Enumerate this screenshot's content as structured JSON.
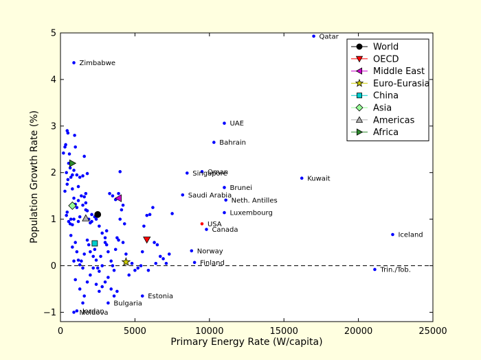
{
  "chart_data": {
    "type": "scatter",
    "title": "",
    "xlabel": "Primary Energy Rate (W/capita)",
    "ylabel": "Population Growth Rate (%)",
    "xlim": [
      0,
      25000
    ],
    "ylim": [
      -1.2,
      5
    ],
    "x_ticks": [
      0,
      5000,
      10000,
      15000,
      20000,
      25000
    ],
    "y_ticks": [
      -1,
      0,
      1,
      2,
      3,
      4,
      5
    ],
    "x_tick_labels": [
      "0",
      "5000",
      "10000",
      "15000",
      "20000",
      "25000"
    ],
    "y_tick_labels": [
      "−1",
      "0",
      "1",
      "2",
      "3",
      "4",
      "5"
    ],
    "grid": false,
    "reference_line": {
      "y": 0,
      "style": "dashed"
    },
    "legend_position": "top-right",
    "countries_color": "#0000ff",
    "labeled_countries": [
      {
        "label": "Qatar",
        "x": 17000,
        "y": 4.93
      },
      {
        "label": "Zimbabwe",
        "x": 900,
        "y": 4.36
      },
      {
        "label": "UAE",
        "x": 11000,
        "y": 3.06
      },
      {
        "label": "Bahrain",
        "x": 10300,
        "y": 2.65
      },
      {
        "label": "Oman",
        "x": 9500,
        "y": 2.02
      },
      {
        "label": "Singapore",
        "x": 8500,
        "y": 1.99
      },
      {
        "label": "Kuwait",
        "x": 16200,
        "y": 1.88
      },
      {
        "label": "Brunei",
        "x": 11000,
        "y": 1.68
      },
      {
        "label": "Saudi Arabia",
        "x": 8200,
        "y": 1.52
      },
      {
        "label": "Neth. Antilles",
        "x": 11100,
        "y": 1.41
      },
      {
        "label": "Luxembourg",
        "x": 11000,
        "y": 1.14
      },
      {
        "label": "USA",
        "x": 9500,
        "y": 0.9
      },
      {
        "label": "Canada",
        "x": 9800,
        "y": 0.78
      },
      {
        "label": "Iceland",
        "x": 22300,
        "y": 0.67
      },
      {
        "label": "Norway",
        "x": 8800,
        "y": 0.32
      },
      {
        "label": "Finland",
        "x": 9000,
        "y": 0.07
      },
      {
        "label": "Trin./Tob.",
        "x": 21100,
        "y": -0.08
      },
      {
        "label": "Estonia",
        "x": 5500,
        "y": -0.65
      },
      {
        "label": "Bulgaria",
        "x": 3200,
        "y": -0.8
      },
      {
        "label": "Jordan",
        "x": 1100,
        "y": -0.97
      },
      {
        "label": "Moldova",
        "x": 900,
        "y": -1.0
      }
    ],
    "other_countries": [
      [
        200,
        2.42
      ],
      [
        300,
        2.55
      ],
      [
        350,
        2.6
      ],
      [
        450,
        2.9
      ],
      [
        500,
        2.85
      ],
      [
        600,
        2.4
      ],
      [
        400,
        2.0
      ],
      [
        500,
        1.85
      ],
      [
        450,
        1.75
      ],
      [
        550,
        2.2
      ],
      [
        650,
        2.1
      ],
      [
        700,
        1.9
      ],
      [
        800,
        1.95
      ],
      [
        900,
        2.05
      ],
      [
        950,
        2.8
      ],
      [
        1000,
        2.55
      ],
      [
        1100,
        1.95
      ],
      [
        1200,
        1.7
      ],
      [
        1300,
        1.9
      ],
      [
        1500,
        1.93
      ],
      [
        1600,
        2.35
      ],
      [
        1700,
        1.55
      ],
      [
        1800,
        1.98
      ],
      [
        800,
        1.65
      ],
      [
        900,
        1.45
      ],
      [
        1000,
        1.32
      ],
      [
        1100,
        1.25
      ],
      [
        1200,
        1.4
      ],
      [
        1400,
        1.5
      ],
      [
        1500,
        1.3
      ],
      [
        1300,
        1.05
      ],
      [
        1200,
        0.95
      ],
      [
        1600,
        1.48
      ],
      [
        1700,
        1.2
      ],
      [
        1800,
        1.18
      ],
      [
        1900,
        1.0
      ],
      [
        2000,
        0.92
      ],
      [
        2100,
        1.1
      ],
      [
        2300,
        1.05
      ],
      [
        2400,
        1.0
      ],
      [
        300,
        1.6
      ],
      [
        400,
        1.08
      ],
      [
        450,
        1.15
      ],
      [
        550,
        0.95
      ],
      [
        650,
        0.9
      ],
      [
        700,
        1.0
      ],
      [
        800,
        0.88
      ],
      [
        900,
        1.0
      ],
      [
        1000,
        0.5
      ],
      [
        1100,
        0.3
      ],
      [
        1200,
        0.12
      ],
      [
        1300,
        0.02
      ],
      [
        1400,
        0.1
      ],
      [
        1500,
        -0.05
      ],
      [
        1600,
        0.25
      ],
      [
        1800,
        0.55
      ],
      [
        1900,
        0.45
      ],
      [
        2000,
        0.3
      ],
      [
        2200,
        0.2
      ],
      [
        2300,
        0.35
      ],
      [
        2400,
        0.12
      ],
      [
        2500,
        -0.05
      ],
      [
        2600,
        -0.12
      ],
      [
        2700,
        0.2
      ],
      [
        2800,
        0.0
      ],
      [
        3000,
        0.5
      ],
      [
        3100,
        0.45
      ],
      [
        3200,
        0.3
      ],
      [
        3400,
        0.1
      ],
      [
        3500,
        0.0
      ],
      [
        3600,
        -0.1
      ],
      [
        3700,
        0.35
      ],
      [
        3800,
        0.6
      ],
      [
        3900,
        0.55
      ],
      [
        4000,
        1.0
      ],
      [
        4100,
        1.2
      ],
      [
        4200,
        1.3
      ],
      [
        4300,
        0.9
      ],
      [
        3300,
        1.55
      ],
      [
        3500,
        1.5
      ],
      [
        3700,
        1.42
      ],
      [
        3900,
        1.55
      ],
      [
        4000,
        2.02
      ],
      [
        4200,
        0.5
      ],
      [
        4400,
        0.25
      ],
      [
        4600,
        -0.2
      ],
      [
        4800,
        0.05
      ],
      [
        5000,
        -0.1
      ],
      [
        5200,
        -0.05
      ],
      [
        5400,
        0.0
      ],
      [
        5500,
        0.3
      ],
      [
        5600,
        0.85
      ],
      [
        5800,
        1.08
      ],
      [
        6000,
        1.1
      ],
      [
        6200,
        1.25
      ],
      [
        6300,
        0.5
      ],
      [
        6500,
        0.45
      ],
      [
        6700,
        0.2
      ],
      [
        6900,
        0.15
      ],
      [
        7100,
        0.05
      ],
      [
        7300,
        0.25
      ],
      [
        7500,
        1.12
      ],
      [
        700,
        0.65
      ],
      [
        800,
        0.4
      ],
      [
        900,
        0.1
      ],
      [
        1000,
        -0.3
      ],
      [
        1300,
        -0.5
      ],
      [
        1600,
        -0.65
      ],
      [
        1800,
        -0.35
      ],
      [
        2000,
        -0.2
      ],
      [
        2200,
        -0.05
      ],
      [
        2400,
        -0.4
      ],
      [
        2600,
        -0.55
      ],
      [
        2800,
        -0.45
      ],
      [
        3000,
        -0.35
      ],
      [
        3200,
        -0.25
      ],
      [
        3400,
        -0.5
      ],
      [
        3600,
        -0.65
      ],
      [
        3800,
        -0.55
      ],
      [
        1500,
        -0.8
      ],
      [
        5900,
        -0.1
      ],
      [
        6400,
        0.05
      ],
      [
        1700,
        1.35
      ],
      [
        2100,
        0.95
      ],
      [
        2600,
        0.85
      ],
      [
        2800,
        0.7
      ],
      [
        3000,
        0.6
      ],
      [
        3100,
        0.75
      ]
    ],
    "series": [
      {
        "name": "World",
        "x": 2500,
        "y": 1.1,
        "marker": "circle",
        "color": "#000000"
      },
      {
        "name": "OECD",
        "x": 5800,
        "y": 0.56,
        "marker": "triangle-down",
        "color": "#ff0000"
      },
      {
        "name": "Middle East",
        "x": 3900,
        "y": 1.45,
        "marker": "triangle-left",
        "color": "#cc00cc"
      },
      {
        "name": "Euro-Eurasia",
        "x": 4400,
        "y": 0.08,
        "marker": "star",
        "color": "#cccc00"
      },
      {
        "name": "China",
        "x": 2300,
        "y": 0.48,
        "marker": "square",
        "color": "#00cccc"
      },
      {
        "name": "Asia",
        "x": 800,
        "y": 1.29,
        "marker": "diamond",
        "color": "#99ff99"
      },
      {
        "name": "Americas",
        "x": 1700,
        "y": 1.02,
        "marker": "triangle-up",
        "color": "#b0b0b0"
      },
      {
        "name": "Africa",
        "x": 800,
        "y": 2.2,
        "marker": "triangle-right",
        "color": "#2e8b2e"
      }
    ]
  }
}
